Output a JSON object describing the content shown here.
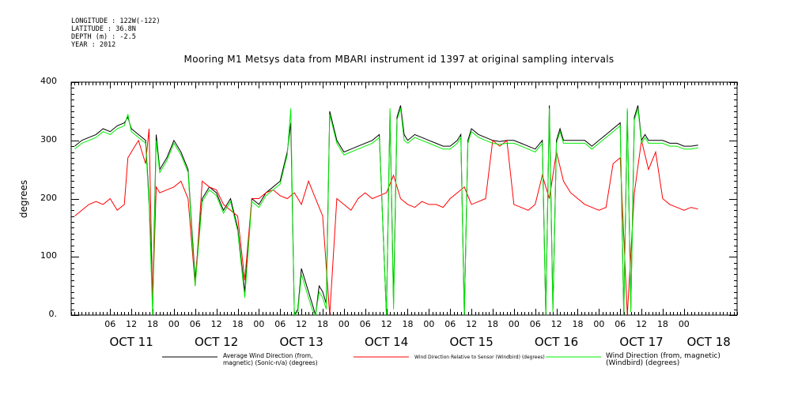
{
  "header": {
    "longitude": "LONGITUDE : 122W(-122)",
    "latitude": "LATITUDE : 36.8N",
    "depth": "DEPTH (m) : -2.5",
    "year": "YEAR : 2012"
  },
  "chart_data": {
    "type": "line",
    "title": "Mooring M1 Metsys data from MBARI instrument id 1397 at original sampling intervals",
    "ylabel": "degrees",
    "xlabel": "",
    "ylim": [
      0,
      400
    ],
    "y_ticks": [
      0,
      100,
      200,
      300,
      400
    ],
    "y_tick_labels": [
      "0.",
      "100",
      "200",
      "300",
      "400"
    ],
    "x_unit": "hours since OCT 11 00:00 2012",
    "xlim": [
      -5,
      183
    ],
    "hour_ticks": [
      {
        "x": 6,
        "label": "06"
      },
      {
        "x": 12,
        "label": "12"
      },
      {
        "x": 18,
        "label": "18"
      },
      {
        "x": 24,
        "label": "00"
      },
      {
        "x": 30,
        "label": "06"
      },
      {
        "x": 36,
        "label": "12"
      },
      {
        "x": 42,
        "label": "18"
      },
      {
        "x": 48,
        "label": "00"
      },
      {
        "x": 54,
        "label": "06"
      },
      {
        "x": 60,
        "label": "12"
      },
      {
        "x": 66,
        "label": "18"
      },
      {
        "x": 72,
        "label": "00"
      },
      {
        "x": 78,
        "label": "06"
      },
      {
        "x": 84,
        "label": "12"
      },
      {
        "x": 90,
        "label": "18"
      },
      {
        "x": 96,
        "label": "00"
      },
      {
        "x": 102,
        "label": "06"
      },
      {
        "x": 108,
        "label": "12"
      },
      {
        "x": 114,
        "label": "18"
      },
      {
        "x": 120,
        "label": "00"
      },
      {
        "x": 126,
        "label": "06"
      },
      {
        "x": 132,
        "label": "12"
      },
      {
        "x": 138,
        "label": "18"
      },
      {
        "x": 144,
        "label": "00"
      },
      {
        "x": 150,
        "label": "06"
      },
      {
        "x": 156,
        "label": "12"
      },
      {
        "x": 162,
        "label": "18"
      },
      {
        "x": 168,
        "label": "00"
      }
    ],
    "day_ticks": [
      {
        "x": 12,
        "label": "OCT 11"
      },
      {
        "x": 36,
        "label": "OCT 12"
      },
      {
        "x": 60,
        "label": "OCT 13"
      },
      {
        "x": 84,
        "label": "OCT 14"
      },
      {
        "x": 108,
        "label": "OCT 15"
      },
      {
        "x": 132,
        "label": "OCT 16"
      },
      {
        "x": 156,
        "label": "OCT 17"
      },
      {
        "x": 175,
        "label": "OCT 18"
      }
    ],
    "series": [
      {
        "name": "Average Wind Direction (from, magnetic) (Sonic-n/a) (degrees)",
        "color": "#000000",
        "x": [
          -4,
          -2,
          0,
          2,
          4,
          6,
          8,
          10,
          11,
          12,
          14,
          16,
          17,
          18,
          19,
          20,
          22,
          24,
          26,
          28,
          30,
          32,
          34,
          36,
          38,
          40,
          42,
          44,
          46,
          48,
          50,
          52,
          54,
          56,
          57,
          58,
          59,
          60,
          61,
          62,
          63,
          64,
          65,
          66,
          67,
          68,
          70,
          72,
          74,
          76,
          78,
          80,
          82,
          84,
          85,
          86,
          87,
          88,
          89,
          90,
          92,
          94,
          96,
          98,
          100,
          102,
          104,
          105,
          106,
          107,
          108,
          110,
          112,
          114,
          116,
          118,
          120,
          122,
          124,
          126,
          128,
          129,
          130,
          131,
          132,
          133,
          134,
          136,
          138,
          140,
          142,
          144,
          146,
          148,
          150,
          151,
          152,
          153,
          154,
          155,
          156,
          157,
          158,
          160,
          162,
          164,
          166,
          168,
          170,
          172
        ],
        "y": [
          290,
          300,
          305,
          310,
          320,
          315,
          325,
          330,
          340,
          320,
          310,
          300,
          200,
          20,
          310,
          250,
          270,
          300,
          280,
          250,
          60,
          200,
          220,
          210,
          180,
          200,
          150,
          40,
          200,
          190,
          210,
          220,
          230,
          280,
          330,
          0,
          10,
          80,
          60,
          40,
          20,
          0,
          50,
          40,
          20,
          350,
          300,
          280,
          285,
          290,
          295,
          300,
          310,
          0,
          350,
          20,
          340,
          360,
          310,
          300,
          310,
          305,
          300,
          295,
          290,
          290,
          300,
          310,
          0,
          300,
          320,
          310,
          305,
          300,
          298,
          300,
          300,
          295,
          290,
          285,
          300,
          0,
          360,
          10,
          300,
          320,
          300,
          300,
          300,
          300,
          290,
          300,
          310,
          320,
          330,
          0,
          350,
          10,
          340,
          360,
          300,
          310,
          300,
          300,
          300,
          295,
          295,
          290,
          290,
          292
        ]
      },
      {
        "name": "Wind Direction Relative to Sensor (Windbird) (degrees)",
        "color": "#ff0000",
        "x": [
          -4,
          -2,
          0,
          2,
          4,
          6,
          8,
          10,
          11,
          12,
          14,
          16,
          17,
          18,
          19,
          20,
          22,
          24,
          26,
          28,
          30,
          32,
          34,
          36,
          38,
          40,
          42,
          44,
          46,
          48,
          50,
          52,
          54,
          56,
          58,
          60,
          62,
          64,
          66,
          68,
          70,
          72,
          74,
          76,
          78,
          80,
          82,
          84,
          86,
          88,
          90,
          92,
          94,
          96,
          98,
          100,
          102,
          104,
          106,
          108,
          110,
          112,
          114,
          116,
          118,
          120,
          122,
          124,
          126,
          128,
          130,
          132,
          134,
          136,
          138,
          140,
          142,
          144,
          146,
          148,
          150,
          152,
          154,
          156,
          158,
          160,
          162,
          164,
          166,
          168,
          170,
          172
        ],
        "y": [
          170,
          180,
          190,
          195,
          190,
          200,
          180,
          190,
          270,
          280,
          300,
          260,
          320,
          20,
          220,
          210,
          215,
          220,
          230,
          200,
          50,
          230,
          220,
          215,
          190,
          180,
          170,
          60,
          200,
          200,
          210,
          215,
          205,
          200,
          210,
          190,
          230,
          200,
          170,
          0,
          200,
          190,
          180,
          200,
          210,
          200,
          205,
          210,
          240,
          200,
          190,
          185,
          195,
          190,
          190,
          185,
          200,
          210,
          220,
          190,
          195,
          200,
          300,
          290,
          300,
          190,
          185,
          180,
          190,
          240,
          200,
          280,
          230,
          210,
          200,
          190,
          185,
          180,
          185,
          260,
          270,
          0,
          210,
          300,
          250,
          280,
          200,
          190,
          185,
          180,
          185,
          182
        ]
      },
      {
        "name": "Wind Direction (from, magnetic) (Windbird) (degrees)",
        "color": "#00ee00",
        "x": [
          -4,
          -2,
          0,
          2,
          4,
          6,
          8,
          10,
          11,
          12,
          14,
          16,
          17,
          18,
          19,
          20,
          22,
          24,
          26,
          28,
          30,
          32,
          34,
          36,
          38,
          40,
          42,
          44,
          46,
          48,
          50,
          52,
          54,
          56,
          57,
          58,
          59,
          60,
          61,
          62,
          63,
          64,
          65,
          66,
          67,
          68,
          70,
          72,
          74,
          76,
          78,
          80,
          82,
          84,
          85,
          86,
          87,
          88,
          89,
          90,
          92,
          94,
          96,
          98,
          100,
          102,
          104,
          105,
          106,
          107,
          108,
          110,
          112,
          114,
          116,
          118,
          120,
          122,
          124,
          126,
          128,
          129,
          130,
          131,
          132,
          133,
          134,
          136,
          138,
          140,
          142,
          144,
          146,
          148,
          150,
          151,
          152,
          153,
          154,
          155,
          156,
          157,
          158,
          160,
          162,
          164,
          166,
          168,
          170,
          172
        ],
        "y": [
          285,
          295,
          300,
          305,
          315,
          310,
          320,
          325,
          345,
          315,
          305,
          295,
          190,
          0,
          300,
          245,
          265,
          295,
          275,
          245,
          50,
          195,
          215,
          205,
          175,
          195,
          145,
          30,
          195,
          185,
          205,
          215,
          225,
          275,
          355,
          0,
          5,
          70,
          50,
          30,
          10,
          0,
          40,
          30,
          10,
          345,
          295,
          275,
          280,
          285,
          290,
          295,
          305,
          0,
          355,
          10,
          335,
          355,
          300,
          295,
          305,
          300,
          295,
          290,
          285,
          285,
          295,
          305,
          0,
          295,
          315,
          305,
          300,
          295,
          293,
          295,
          295,
          290,
          285,
          280,
          295,
          0,
          355,
          5,
          295,
          315,
          295,
          295,
          295,
          295,
          285,
          295,
          305,
          315,
          325,
          0,
          355,
          5,
          335,
          355,
          295,
          305,
          295,
          295,
          295,
          290,
          290,
          285,
          285,
          287
        ]
      }
    ],
    "legend_placement": "bottom",
    "grid": false
  }
}
